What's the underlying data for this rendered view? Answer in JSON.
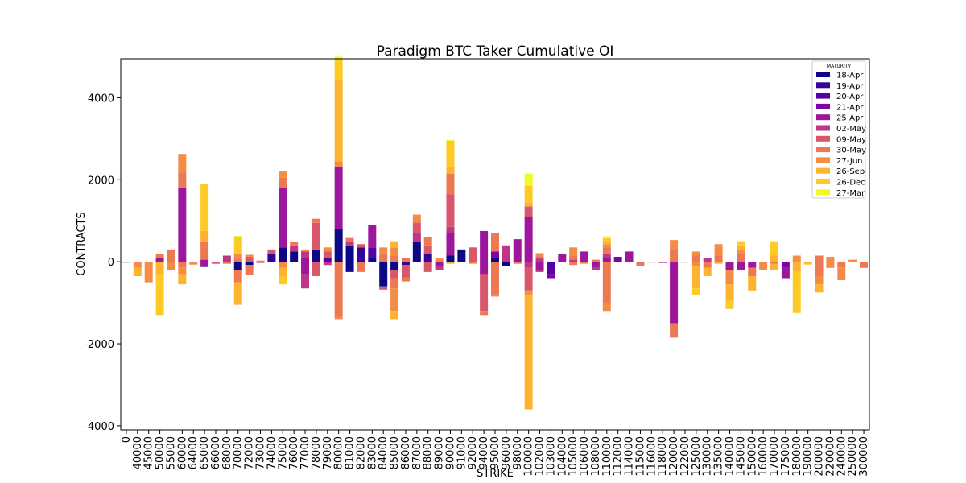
{
  "chart_data": {
    "type": "bar",
    "stacked": true,
    "title": "Paradigm BTC Taker Cumulative OI",
    "xlabel": "STRIKE",
    "ylabel": "CONTRACTS",
    "ylim": [
      -4100,
      4950
    ],
    "yticks": [
      -4000,
      -2000,
      0,
      2000,
      4000
    ],
    "grid": false,
    "legend": {
      "title": "MATURITY",
      "position": "top-right"
    },
    "categories": [
      "0",
      "40000",
      "45000",
      "50000",
      "55000",
      "60000",
      "64000",
      "65000",
      "66000",
      "68000",
      "70000",
      "72000",
      "73000",
      "74000",
      "75000",
      "76000",
      "77000",
      "78000",
      "79000",
      "80000",
      "81000",
      "82000",
      "83000",
      "84000",
      "85000",
      "86000",
      "87000",
      "88000",
      "89000",
      "90000",
      "91000",
      "92000",
      "94000",
      "95000",
      "96000",
      "98000",
      "100000",
      "102000",
      "103000",
      "104000",
      "105000",
      "106000",
      "108000",
      "110000",
      "112000",
      "114000",
      "115000",
      "116000",
      "118000",
      "120000",
      "122000",
      "125000",
      "130000",
      "135000",
      "140000",
      "145000",
      "150000",
      "160000",
      "170000",
      "175000",
      "180000",
      "190000",
      "200000",
      "220000",
      "240000",
      "250000",
      "300000"
    ],
    "series": [
      {
        "name": "18-Apr",
        "color": "#0d0887",
        "values": [
          {
            "i": 14,
            "v": 350
          },
          {
            "i": 15,
            "v": 250
          },
          {
            "i": 17,
            "v": 300
          },
          {
            "i": 19,
            "v": 800
          },
          {
            "i": 20,
            "v": 400
          },
          {
            "i": 22,
            "v": 100
          },
          {
            "i": 26,
            "v": 500
          },
          {
            "i": 29,
            "v": 150
          },
          {
            "i": 30,
            "v": 300
          },
          {
            "i": 33,
            "v": 100
          },
          {
            "i": 6,
            "v": -20
          },
          {
            "i": 10,
            "v": -200
          },
          {
            "i": 11,
            "v": -80
          },
          {
            "i": 20,
            "v": -250
          },
          {
            "i": 23,
            "v": -600
          },
          {
            "i": 24,
            "v": -200
          },
          {
            "i": 34,
            "v": -100
          }
        ]
      },
      {
        "name": "19-Apr",
        "color": "#350498",
        "values": [
          {
            "i": 13,
            "v": 180
          },
          {
            "i": 21,
            "v": 350
          },
          {
            "i": 27,
            "v": 200
          },
          {
            "i": 0,
            "v": -20
          },
          {
            "i": 25,
            "v": -80
          }
        ]
      },
      {
        "name": "20-Apr",
        "color": "#5302a3",
        "values": [
          {
            "i": 18,
            "v": 100
          },
          {
            "i": 22,
            "v": 250
          },
          {
            "i": 38,
            "v": -300
          }
        ]
      },
      {
        "name": "21-Apr",
        "color": "#7e03a8",
        "values": [
          {
            "i": 33,
            "v": 150
          },
          {
            "i": 38,
            "v": -100
          },
          {
            "i": 44,
            "v": 120
          },
          {
            "i": 59,
            "v": -150
          }
        ]
      },
      {
        "name": "25-Apr",
        "color": "#9c179e",
        "values": [
          {
            "i": 3,
            "v": 100
          },
          {
            "i": 5,
            "v": 1800
          },
          {
            "i": 7,
            "v": 50
          },
          {
            "i": 14,
            "v": 1450
          },
          {
            "i": 16,
            "v": 100
          },
          {
            "i": 19,
            "v": 1500
          },
          {
            "i": 22,
            "v": 550
          },
          {
            "i": 29,
            "v": 550
          },
          {
            "i": 32,
            "v": 750
          },
          {
            "i": 35,
            "v": 550
          },
          {
            "i": 36,
            "v": 1100
          },
          {
            "i": 39,
            "v": 200
          },
          {
            "i": 41,
            "v": 250
          },
          {
            "i": 43,
            "v": 100
          },
          {
            "i": 45,
            "v": 250
          },
          {
            "i": 7,
            "v": -130
          },
          {
            "i": 16,
            "v": -300
          },
          {
            "i": 28,
            "v": -100
          },
          {
            "i": 32,
            "v": -300
          },
          {
            "i": 37,
            "v": -200
          },
          {
            "i": 42,
            "v": -150
          },
          {
            "i": 49,
            "v": -1500
          },
          {
            "i": 54,
            "v": -200
          },
          {
            "i": 55,
            "v": -200
          },
          {
            "i": 56,
            "v": -150
          },
          {
            "i": 59,
            "v": -250
          }
        ]
      },
      {
        "name": "02-May",
        "color": "#bd3786",
        "values": [
          {
            "i": 9,
            "v": 150
          },
          {
            "i": 15,
            "v": 150
          },
          {
            "i": 16,
            "v": 150
          },
          {
            "i": 20,
            "v": 80
          },
          {
            "i": 26,
            "v": 200
          },
          {
            "i": 29,
            "v": 150
          },
          {
            "i": 34,
            "v": 400
          },
          {
            "i": 37,
            "v": 80
          },
          {
            "i": 40,
            "v": 50
          },
          {
            "i": 43,
            "v": 100
          },
          {
            "i": 52,
            "v": 100
          },
          {
            "i": 16,
            "v": -350
          },
          {
            "i": 18,
            "v": -80
          },
          {
            "i": 28,
            "v": -100
          },
          {
            "i": 36,
            "v": -150
          },
          {
            "i": 37,
            "v": -50
          },
          {
            "i": 42,
            "v": -50
          },
          {
            "i": 47,
            "v": -20
          },
          {
            "i": 48,
            "v": -30
          }
        ]
      },
      {
        "name": "09-May",
        "color": "#d8576b",
        "values": [
          {
            "i": 11,
            "v": 120
          },
          {
            "i": 13,
            "v": 120
          },
          {
            "i": 17,
            "v": 650
          },
          {
            "i": 18,
            "v": 150
          },
          {
            "i": 21,
            "v": 80
          },
          {
            "i": 26,
            "v": 250
          },
          {
            "i": 27,
            "v": 200
          },
          {
            "i": 29,
            "v": 800
          },
          {
            "i": 31,
            "v": 350
          },
          {
            "i": 36,
            "v": 250
          },
          {
            "i": 8,
            "v": -50
          },
          {
            "i": 12,
            "v": -30
          },
          {
            "i": 17,
            "v": -350
          },
          {
            "i": 23,
            "v": -80
          },
          {
            "i": 24,
            "v": -200
          },
          {
            "i": 25,
            "v": -300
          },
          {
            "i": 27,
            "v": -250
          },
          {
            "i": 32,
            "v": -900
          },
          {
            "i": 36,
            "v": -550
          },
          {
            "i": 46,
            "v": -30
          },
          {
            "i": 50,
            "v": -20
          }
        ]
      },
      {
        "name": "30-May",
        "color": "#ed7953",
        "values": [
          {
            "i": 3,
            "v": 100
          },
          {
            "i": 4,
            "v": 300
          },
          {
            "i": 5,
            "v": 380
          },
          {
            "i": 7,
            "v": 450
          },
          {
            "i": 10,
            "v": 80
          },
          {
            "i": 14,
            "v": 250
          },
          {
            "i": 15,
            "v": 80
          },
          {
            "i": 17,
            "v": 100
          },
          {
            "i": 20,
            "v": 100
          },
          {
            "i": 23,
            "v": 200
          },
          {
            "i": 24,
            "v": 150
          },
          {
            "i": 25,
            "v": 100
          },
          {
            "i": 26,
            "v": 50
          },
          {
            "i": 27,
            "v": 200
          },
          {
            "i": 29,
            "v": 500
          },
          {
            "i": 33,
            "v": 450
          },
          {
            "i": 37,
            "v": 50
          },
          {
            "i": 40,
            "v": 100
          },
          {
            "i": 42,
            "v": 50
          },
          {
            "i": 43,
            "v": 150
          },
          {
            "i": 49,
            "v": 280
          },
          {
            "i": 51,
            "v": 150
          },
          {
            "i": 53,
            "v": 150
          },
          {
            "i": 55,
            "v": 200
          },
          {
            "i": 62,
            "v": 150
          },
          {
            "i": 5,
            "v": -150
          },
          {
            "i": 9,
            "v": -50
          },
          {
            "i": 10,
            "v": -300
          },
          {
            "i": 11,
            "v": -250
          },
          {
            "i": 19,
            "v": -1350
          },
          {
            "i": 21,
            "v": -250
          },
          {
            "i": 24,
            "v": -250
          },
          {
            "i": 25,
            "v": -100
          },
          {
            "i": 32,
            "v": -100
          },
          {
            "i": 33,
            "v": -800
          },
          {
            "i": 35,
            "v": -50
          },
          {
            "i": 40,
            "v": -80
          },
          {
            "i": 43,
            "v": -1000
          },
          {
            "i": 46,
            "v": -80
          },
          {
            "i": 49,
            "v": -350
          },
          {
            "i": 52,
            "v": -150
          },
          {
            "i": 56,
            "v": -200
          },
          {
            "i": 58,
            "v": -50
          },
          {
            "i": 62,
            "v": -350
          },
          {
            "i": 64,
            "v": -150
          },
          {
            "i": 66,
            "v": -150
          }
        ]
      },
      {
        "name": "27-Jun",
        "color": "#f58c46",
        "values": [
          {
            "i": 5,
            "v": 450
          },
          {
            "i": 10,
            "v": 100
          },
          {
            "i": 11,
            "v": 50
          },
          {
            "i": 12,
            "v": 30
          },
          {
            "i": 14,
            "v": 150
          },
          {
            "i": 16,
            "v": 50
          },
          {
            "i": 18,
            "v": 100
          },
          {
            "i": 19,
            "v": 150
          },
          {
            "i": 23,
            "v": 150
          },
          {
            "i": 24,
            "v": 200
          },
          {
            "i": 26,
            "v": 150
          },
          {
            "i": 28,
            "v": 80
          },
          {
            "i": 37,
            "v": 80
          },
          {
            "i": 40,
            "v": 200
          },
          {
            "i": 43,
            "v": 80
          },
          {
            "i": 49,
            "v": 250
          },
          {
            "i": 51,
            "v": 100
          },
          {
            "i": 53,
            "v": 280
          },
          {
            "i": 55,
            "v": 100
          },
          {
            "i": 60,
            "v": 150
          },
          {
            "i": 63,
            "v": 120
          },
          {
            "i": 65,
            "v": 50
          },
          {
            "i": 1,
            "v": -150
          },
          {
            "i": 2,
            "v": -500
          },
          {
            "i": 4,
            "v": -200
          },
          {
            "i": 5,
            "v": -150
          },
          {
            "i": 6,
            "v": -50
          },
          {
            "i": 14,
            "v": -150
          },
          {
            "i": 19,
            "v": -50
          },
          {
            "i": 24,
            "v": -550
          },
          {
            "i": 31,
            "v": -50
          },
          {
            "i": 33,
            "v": -50
          },
          {
            "i": 36,
            "v": -100
          },
          {
            "i": 41,
            "v": -50
          },
          {
            "i": 43,
            "v": -200
          },
          {
            "i": 51,
            "v": -100
          },
          {
            "i": 54,
            "v": -350
          },
          {
            "i": 57,
            "v": -200
          },
          {
            "i": 62,
            "v": -200
          },
          {
            "i": 63,
            "v": -150
          },
          {
            "i": 64,
            "v": -300
          }
        ]
      },
      {
        "name": "26-Sep",
        "color": "#fdb32f",
        "values": [
          {
            "i": 7,
            "v": 250
          },
          {
            "i": 19,
            "v": 2000
          },
          {
            "i": 24,
            "v": 150
          },
          {
            "i": 29,
            "v": 150
          },
          {
            "i": 36,
            "v": 100
          },
          {
            "i": 43,
            "v": 60
          },
          {
            "i": 55,
            "v": 100
          },
          {
            "i": 58,
            "v": 150
          },
          {
            "i": 1,
            "v": -200
          },
          {
            "i": 3,
            "v": -300
          },
          {
            "i": 5,
            "v": -250
          },
          {
            "i": 10,
            "v": -550
          },
          {
            "i": 14,
            "v": -200
          },
          {
            "i": 24,
            "v": -200
          },
          {
            "i": 29,
            "v": -50
          },
          {
            "i": 36,
            "v": -2800
          },
          {
            "i": 51,
            "v": -550
          },
          {
            "i": 52,
            "v": -200
          },
          {
            "i": 53,
            "v": -50
          },
          {
            "i": 54,
            "v": -400
          },
          {
            "i": 56,
            "v": -350
          },
          {
            "i": 58,
            "v": -150
          },
          {
            "i": 60,
            "v": -250
          },
          {
            "i": 61,
            "v": -50
          },
          {
            "i": 62,
            "v": -200
          }
        ]
      },
      {
        "name": "26-Dec",
        "color": "#fdca26",
        "values": [
          {
            "i": 7,
            "v": 1150
          },
          {
            "i": 10,
            "v": 420
          },
          {
            "i": 19,
            "v": 500
          },
          {
            "i": 29,
            "v": 650
          },
          {
            "i": 36,
            "v": 400
          },
          {
            "i": 43,
            "v": 80
          },
          {
            "i": 55,
            "v": 100
          },
          {
            "i": 58,
            "v": 350
          },
          {
            "i": 3,
            "v": -1000
          },
          {
            "i": 14,
            "v": -200
          },
          {
            "i": 51,
            "v": -150
          },
          {
            "i": 54,
            "v": -200
          },
          {
            "i": 60,
            "v": -1000
          },
          {
            "i": 61,
            "v": -20
          }
        ]
      },
      {
        "name": "27-Mar",
        "color": "#f0f921",
        "values": [
          {
            "i": 10,
            "v": 30
          },
          {
            "i": 19,
            "v": 50
          },
          {
            "i": 29,
            "v": 20
          },
          {
            "i": 36,
            "v": 300
          },
          {
            "i": 43,
            "v": 50
          }
        ]
      }
    ]
  }
}
